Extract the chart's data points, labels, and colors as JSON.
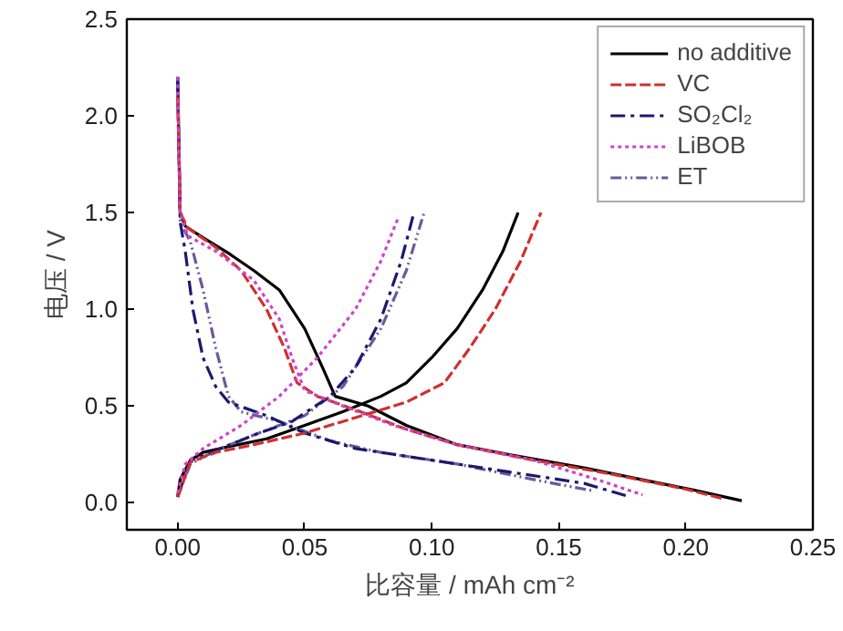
{
  "chart_data": {
    "type": "line",
    "xlabel": "比容量 / mAh cm⁻²",
    "ylabel": "电压 / V",
    "xlim": [
      -0.02,
      0.25
    ],
    "ylim": [
      -0.14,
      2.5
    ],
    "xticks": [
      {
        "value": 0,
        "label": "0.00"
      },
      0.05,
      {
        "value": 0.1,
        "label": "0.10"
      },
      0.15,
      {
        "value": 0.2,
        "label": "0.20"
      },
      0.25
    ],
    "yticks": [
      {
        "value": 0,
        "label": "0.0"
      },
      0.5,
      {
        "value": 1,
        "label": "1.0"
      },
      1.5,
      {
        "value": 2,
        "label": "2.0"
      },
      2.5
    ],
    "grid": false,
    "legend": "top right",
    "marker": "none",
    "series": [
      {
        "name": "no additive",
        "color": "#000000",
        "line_style": "solid",
        "x": [
          0,
          0.001,
          0.003,
          0.01,
          0.02,
          0.03,
          0.04,
          0.05,
          0.057,
          0.062,
          0.075,
          0.09,
          0.11,
          0.13,
          0.16,
          0.19,
          0.205,
          0.222,
          null,
          0,
          0.001,
          0.005,
          0.01,
          0.02,
          0.035,
          0.05,
          0.065,
          0.08,
          0.09,
          0.1,
          0.11,
          0.12,
          0.128,
          0.134
        ],
        "values": [
          2.2,
          1.5,
          1.43,
          1.37,
          1.29,
          1.2,
          1.1,
          0.9,
          0.7,
          0.55,
          0.5,
          0.4,
          0.3,
          0.25,
          0.18,
          0.1,
          0.06,
          0.01,
          null,
          0.03,
          0.12,
          0.22,
          0.26,
          0.29,
          0.33,
          0.4,
          0.47,
          0.55,
          0.62,
          0.75,
          0.9,
          1.1,
          1.3,
          1.5
        ]
      },
      {
        "name": "VC",
        "color": "#d03030",
        "line_style": "dashed",
        "x": [
          0,
          0.001,
          0.004,
          0.015,
          0.025,
          0.035,
          0.042,
          0.047,
          0.055,
          0.07,
          0.09,
          0.11,
          0.14,
          0.17,
          0.2,
          0.215,
          null,
          0,
          0.005,
          0.015,
          0.03,
          0.05,
          0.07,
          0.09,
          0.105,
          0.115,
          0.125,
          0.135,
          0.143
        ],
        "values": [
          2.1,
          1.5,
          1.42,
          1.32,
          1.2,
          1.0,
          0.8,
          0.62,
          0.55,
          0.48,
          0.38,
          0.3,
          0.22,
          0.15,
          0.07,
          0.02,
          null,
          0.03,
          0.21,
          0.26,
          0.3,
          0.36,
          0.44,
          0.52,
          0.62,
          0.8,
          1.0,
          1.25,
          1.5
        ]
      },
      {
        "name": "SO₂Cl₂",
        "color": "#1a1a6e",
        "line_style": "dashdot",
        "x": [
          0,
          0.001,
          0.003,
          0.006,
          0.01,
          0.015,
          0.02,
          0.035,
          0.05,
          0.07,
          0.1,
          0.13,
          0.16,
          0.178,
          null,
          0,
          0.005,
          0.015,
          0.03,
          0.045,
          0.06,
          0.07,
          0.08,
          0.088,
          0.093
        ],
        "values": [
          2.2,
          1.45,
          1.3,
          1.0,
          0.75,
          0.6,
          0.52,
          0.45,
          0.36,
          0.28,
          0.22,
          0.16,
          0.1,
          0.03,
          null,
          0.03,
          0.22,
          0.27,
          0.35,
          0.42,
          0.55,
          0.7,
          0.95,
          1.25,
          1.5
        ]
      },
      {
        "name": "LiBOB",
        "color": "#cc44cc",
        "line_style": "dotted",
        "x": [
          0,
          0.001,
          0.004,
          0.015,
          0.03,
          0.04,
          0.045,
          0.05,
          0.065,
          0.085,
          0.11,
          0.14,
          0.165,
          0.183,
          null,
          0,
          0.003,
          0.01,
          0.025,
          0.04,
          0.055,
          0.07,
          0.08,
          0.087
        ],
        "values": [
          2.2,
          1.5,
          1.38,
          1.3,
          1.15,
          0.95,
          0.75,
          0.58,
          0.5,
          0.4,
          0.3,
          0.22,
          0.12,
          0.04,
          null,
          0.05,
          0.2,
          0.28,
          0.4,
          0.55,
          0.75,
          1.0,
          1.25,
          1.48
        ]
      },
      {
        "name": "ET",
        "color": "#6a5a9a",
        "line_style": "dashdotdot",
        "x": [
          0,
          0.001,
          0.005,
          0.01,
          0.015,
          0.02,
          0.025,
          0.04,
          0.06,
          0.08,
          0.11,
          0.14,
          0.164,
          null,
          0,
          0.005,
          0.015,
          0.03,
          0.05,
          0.065,
          0.08,
          0.09,
          0.097
        ],
        "values": [
          2.2,
          1.45,
          1.35,
          1.1,
          0.8,
          0.55,
          0.47,
          0.42,
          0.32,
          0.26,
          0.2,
          0.12,
          0.06,
          null,
          0.03,
          0.2,
          0.27,
          0.35,
          0.45,
          0.6,
          0.9,
          1.2,
          1.5
        ]
      }
    ]
  }
}
